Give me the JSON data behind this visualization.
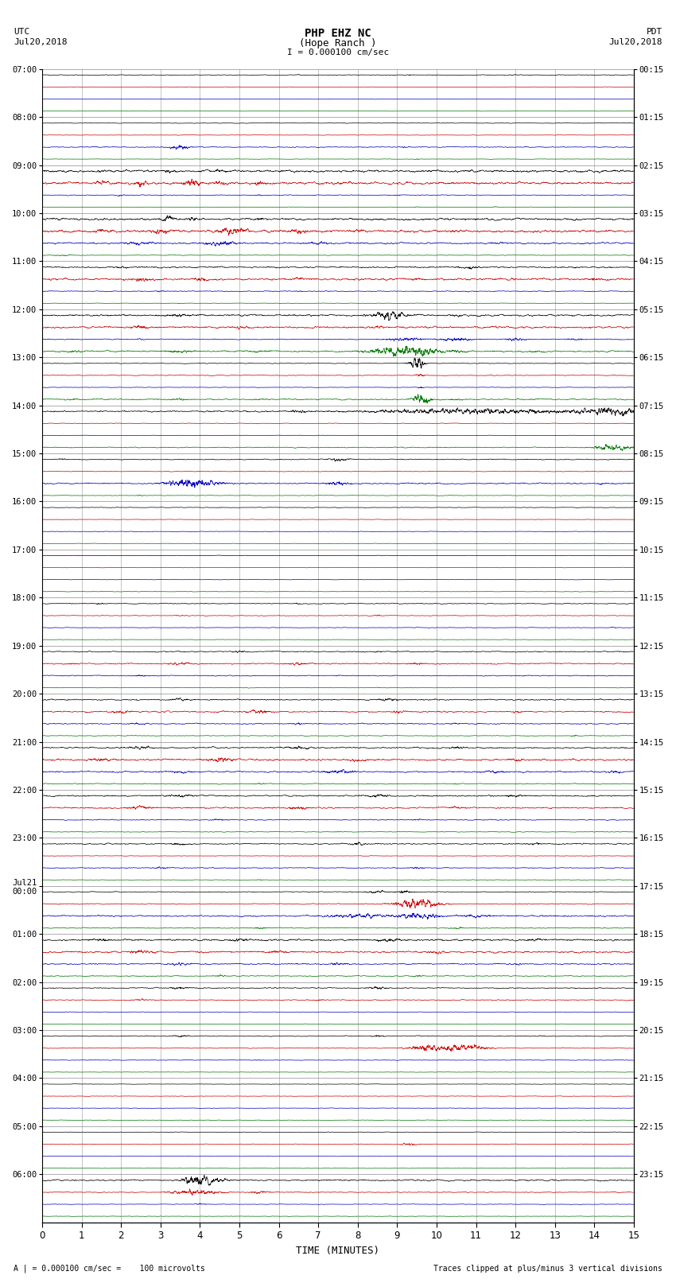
{
  "title_line1": "PHP EHZ NC",
  "title_line2": "(Hope Ranch )",
  "title_line3": "I = 0.000100 cm/sec",
  "left_header_line1": "UTC",
  "left_header_line2": "Jul20,2018",
  "right_header_line1": "PDT",
  "right_header_line2": "Jul20,2018",
  "footer_left": "A | = 0.000100 cm/sec =    100 microvolts",
  "footer_right": "Traces clipped at plus/minus 3 vertical divisions",
  "xlabel": "TIME (MINUTES)",
  "utc_labels": [
    "07:00",
    "08:00",
    "09:00",
    "10:00",
    "11:00",
    "12:00",
    "13:00",
    "14:00",
    "15:00",
    "16:00",
    "17:00",
    "18:00",
    "19:00",
    "20:00",
    "21:00",
    "22:00",
    "23:00",
    "Jul21\n00:00",
    "01:00",
    "02:00",
    "03:00",
    "04:00",
    "05:00",
    "06:00"
  ],
  "pdt_labels": [
    "00:15",
    "01:15",
    "02:15",
    "03:15",
    "04:15",
    "05:15",
    "06:15",
    "07:15",
    "08:15",
    "09:15",
    "10:15",
    "11:15",
    "12:15",
    "13:15",
    "14:15",
    "15:15",
    "16:15",
    "17:15",
    "18:15",
    "19:15",
    "20:15",
    "21:15",
    "22:15",
    "23:15"
  ],
  "num_rows": 24,
  "colors": {
    "black": "#000000",
    "red": "#cc0000",
    "blue": "#0000bb",
    "green": "#007700",
    "bg": "#ffffff",
    "grid_v": "#888888",
    "grid_h": "#888888"
  },
  "row_color_pattern": [
    "black",
    "red",
    "blue",
    "green"
  ],
  "xmin": 0,
  "xmax": 15,
  "xticks": [
    0,
    1,
    2,
    3,
    4,
    5,
    6,
    7,
    8,
    9,
    10,
    11,
    12,
    13,
    14,
    15
  ],
  "base_noise": 0.06,
  "lw": 0.5
}
